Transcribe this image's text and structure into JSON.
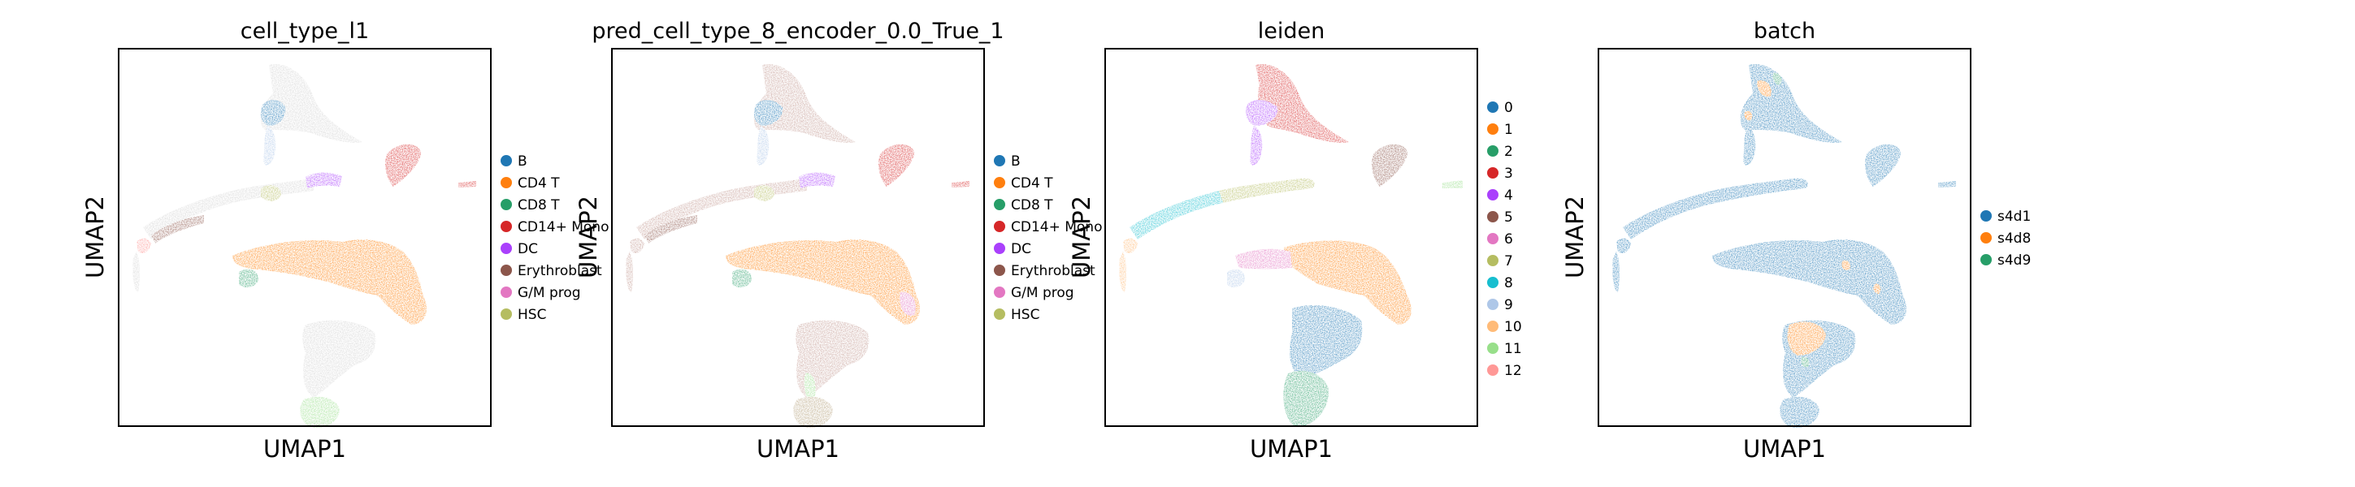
{
  "chart_data": [
    {
      "type": "scatter",
      "title": "cell_type_l1",
      "xlabel": "UMAP1",
      "ylabel": "UMAP2",
      "grid": false,
      "legend_placement": "right",
      "legend": [
        {
          "label": "B",
          "color": "#1f77b4"
        },
        {
          "label": "CD4 T",
          "color": "#ff7f0e"
        },
        {
          "label": "CD8 T",
          "color": "#279e68"
        },
        {
          "label": "CD14+ Mono",
          "color": "#d62728"
        },
        {
          "label": "DC",
          "color": "#aa40fc"
        },
        {
          "label": "Erythroblast",
          "color": "#8c564b"
        },
        {
          "label": "G/M prog",
          "color": "#e377c2"
        },
        {
          "label": "HSC",
          "color": "#b5bd61"
        }
      ]
    },
    {
      "type": "scatter",
      "title": "pred_cell_type_8_encoder_0.0_True_1",
      "xlabel": "UMAP1",
      "ylabel": "UMAP2",
      "grid": false,
      "legend_placement": "right",
      "legend": [
        {
          "label": "B",
          "color": "#1f77b4"
        },
        {
          "label": "CD4 T",
          "color": "#ff7f0e"
        },
        {
          "label": "CD8 T",
          "color": "#279e68"
        },
        {
          "label": "CD14+ Mono",
          "color": "#d62728"
        },
        {
          "label": "DC",
          "color": "#aa40fc"
        },
        {
          "label": "Erythroblast",
          "color": "#8c564b"
        },
        {
          "label": "G/M prog",
          "color": "#e377c2"
        },
        {
          "label": "HSC",
          "color": "#b5bd61"
        }
      ]
    },
    {
      "type": "scatter",
      "title": "leiden",
      "xlabel": "UMAP1",
      "ylabel": "UMAP2",
      "grid": false,
      "legend_placement": "right",
      "legend": [
        {
          "label": "0",
          "color": "#1f77b4"
        },
        {
          "label": "1",
          "color": "#ff7f0e"
        },
        {
          "label": "2",
          "color": "#279e68"
        },
        {
          "label": "3",
          "color": "#d62728"
        },
        {
          "label": "4",
          "color": "#aa40fc"
        },
        {
          "label": "5",
          "color": "#8c564b"
        },
        {
          "label": "6",
          "color": "#e377c2"
        },
        {
          "label": "7",
          "color": "#b5bd61"
        },
        {
          "label": "8",
          "color": "#17becf"
        },
        {
          "label": "9",
          "color": "#aec7e8"
        },
        {
          "label": "10",
          "color": "#ffbb78"
        },
        {
          "label": "11",
          "color": "#98df8a"
        },
        {
          "label": "12",
          "color": "#ff9896"
        }
      ]
    },
    {
      "type": "scatter",
      "title": "batch",
      "xlabel": "UMAP1",
      "ylabel": "UMAP2",
      "grid": false,
      "legend_placement": "right",
      "legend": [
        {
          "label": "s4d1",
          "color": "#1f77b4"
        },
        {
          "label": "s4d8",
          "color": "#ff7f0e"
        },
        {
          "label": "s4d9",
          "color": "#279e68"
        }
      ]
    }
  ]
}
